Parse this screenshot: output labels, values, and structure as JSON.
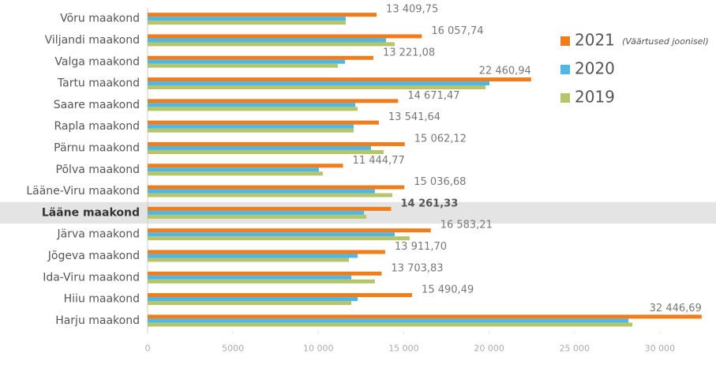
{
  "chart_data": {
    "type": "barh",
    "categories": [
      "Võru maakond",
      "Viljandi maakond",
      "Valga maakond",
      "Tartu maakond",
      "Saare maakond",
      "Rapla maakond",
      "Pärnu maakond",
      "Põlva maakond",
      "Lääne-Viru maakond",
      "Lääne maakond",
      "Järva maakond",
      "Jõgeva maakond",
      "Ida-Viru maakond",
      "Hiiu maakond",
      "Harju maakond"
    ],
    "series": [
      {
        "name": "2021",
        "color": "#f07d1a",
        "values": [
          13409.75,
          16057.74,
          13221.08,
          22460.94,
          14671.47,
          13541.64,
          15062.12,
          11444.77,
          15036.68,
          14261.33,
          16583.21,
          13911.7,
          13703.83,
          15490.49,
          32446.69
        ],
        "value_labels": [
          "13 409,75",
          "16 057,74",
          "13 221,08",
          "22 460,94",
          "14 671,47",
          "13 541,64",
          "15 062,12",
          "11 444,77",
          "15 036,68",
          "14 261,33",
          "16 583,21",
          "13 911,70",
          "13 703,83",
          "15 490,49",
          "32 446,69"
        ]
      },
      {
        "name": "2020",
        "color": "#4db8e8",
        "values": [
          11600,
          13960,
          11560,
          20020,
          12160,
          12070,
          13080,
          10030,
          13310,
          12670,
          14470,
          12300,
          11930,
          12300,
          28160
        ]
      },
      {
        "name": "2019",
        "color": "#b5c56a",
        "values": [
          11600,
          14470,
          11140,
          19790,
          12300,
          12070,
          13820,
          10260,
          14330,
          12810,
          15350,
          11790,
          13310,
          11930,
          28390
        ]
      }
    ],
    "legend_note": "(Väärtused joonisel)",
    "highlight": "Lääne maakond",
    "xlim": [
      0,
      33000
    ],
    "xticks": [
      0,
      5000,
      {
        "value": 10000,
        "label": "10 000"
      },
      {
        "value": 15000,
        "label": "15 000"
      },
      {
        "value": 20000,
        "label": "20 000"
      },
      {
        "value": 25000,
        "label": "25 000"
      },
      {
        "value": 30000,
        "label": "30 000"
      }
    ]
  }
}
